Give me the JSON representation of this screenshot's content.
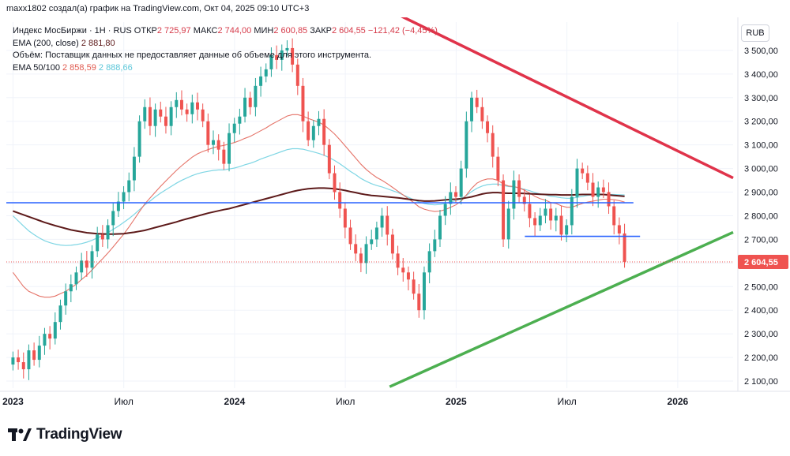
{
  "header": "maxx1802 создал(а) график на TradingView.com, Окт 04, 2025 09:10 UTC+3",
  "legend": {
    "symbol": "Индекс МосБиржи · 1Н · RUS",
    "open_label": "ОТКР",
    "open": "2 725,97",
    "high_label": "МАКС",
    "high": "2 744,00",
    "low_label": "МИН",
    "low": "2 600,85",
    "close_label": "ЗАКР",
    "close": "2 604,55",
    "change": "−121,42 (−4,45%)",
    "ema200_label": "EMA (200, close)",
    "ema200_value": "2 881,80",
    "volume_note": "Объём: Поставщик данных не предоставляет данные об объеме для этого инструмента.",
    "ema_pair_label": "EMA 50/100",
    "ema50_value": "2 858,59",
    "ema100_value": "2 888,66"
  },
  "currency": "RUB",
  "footer": {
    "logo_text": "TradingView"
  },
  "colors": {
    "up": "#26a69a",
    "down": "#ef5350",
    "resistance": "#e0334a",
    "support": "#4caf50",
    "level": "#2962ff",
    "ema200": "#5d1a1a",
    "ema50": "#e57368",
    "ema100": "#7fd6e4"
  },
  "chart_data": {
    "type": "candlestick",
    "title": "Индекс МосБиржи · 1Н · RUS",
    "ylim": [
      2070,
      3620
    ],
    "y_ticks": [
      "3 500,00",
      "3 400,00",
      "3 300,00",
      "3 200,00",
      "3 100,00",
      "3 000,00",
      "2 900,00",
      "2 800,00",
      "2 700,00",
      "2 600,00",
      "2 500,00",
      "2 400,00",
      "2 300,00",
      "2 200,00",
      "2 100,00"
    ],
    "y_tick_values": [
      3500,
      3400,
      3300,
      3200,
      3100,
      3000,
      2900,
      2800,
      2700,
      2600,
      2500,
      2400,
      2300,
      2200,
      2100
    ],
    "x_ticks": [
      "2023",
      "Июл",
      "2024",
      "Июл",
      "2025",
      "Июл",
      "2026"
    ],
    "x_tick_positions": [
      0.0,
      0.5,
      1.0,
      1.5,
      2.0,
      2.5,
      3.0
    ],
    "x_range": [
      -0.03,
      3.25
    ],
    "last_price": "2 604,55",
    "last_price_value": 2604.55,
    "closes": [
      2200,
      2180,
      2150,
      2230,
      2190,
      2250,
      2300,
      2280,
      2350,
      2420,
      2480,
      2510,
      2560,
      2610,
      2580,
      2650,
      2720,
      2700,
      2760,
      2820,
      2860,
      2900,
      2950,
      3050,
      3200,
      3260,
      3180,
      3250,
      3220,
      3180,
      3260,
      3290,
      3250,
      3230,
      3280,
      3250,
      3200,
      3100,
      3120,
      3080,
      3020,
      3150,
      3190,
      3220,
      3300,
      3260,
      3350,
      3390,
      3420,
      3480,
      3460,
      3500,
      3510,
      3440,
      3350,
      3200,
      3120,
      3180,
      3210,
      3100,
      2980,
      2900,
      2830,
      2750,
      2680,
      2640,
      2600,
      2680,
      2700,
      2750,
      2800,
      2720,
      2640,
      2580,
      2560,
      2530,
      2470,
      2400,
      2560,
      2650,
      2700,
      2800,
      2850,
      2900,
      2880,
      3000,
      3200,
      3300,
      3260,
      3200,
      3150,
      3050,
      2950,
      2700,
      2830,
      2950,
      2880,
      2850,
      2790,
      2760,
      2800,
      2830,
      2780,
      2800,
      2720,
      2760,
      2880,
      3000,
      2980,
      2940,
      2880,
      2920,
      2900,
      2840,
      2760,
      2725,
      2605
    ],
    "ema200": [
      2820,
      2812,
      2804,
      2796,
      2788,
      2780,
      2772,
      2765,
      2758,
      2752,
      2746,
      2740,
      2736,
      2732,
      2728,
      2726,
      2724,
      2723,
      2722,
      2722,
      2723,
      2724,
      2727,
      2730,
      2734,
      2738,
      2744,
      2750,
      2756,
      2762,
      2768,
      2774,
      2781,
      2787,
      2793,
      2799,
      2805,
      2811,
      2816,
      2821,
      2826,
      2830,
      2836,
      2842,
      2848,
      2854,
      2860,
      2866,
      2872,
      2878,
      2884,
      2890,
      2896,
      2902,
      2907,
      2911,
      2914,
      2916,
      2917,
      2917,
      2916,
      2914,
      2911,
      2907,
      2902,
      2898,
      2893,
      2889,
      2886,
      2884,
      2882,
      2880,
      2878,
      2876,
      2873,
      2870,
      2867,
      2864,
      2862,
      2862,
      2863,
      2865,
      2867,
      2869,
      2870,
      2872,
      2876,
      2880,
      2886,
      2892,
      2896,
      2898,
      2898,
      2896,
      2895,
      2895,
      2895,
      2894,
      2893,
      2892,
      2891,
      2890,
      2889,
      2889,
      2888,
      2888,
      2888,
      2889,
      2890,
      2890,
      2890,
      2890,
      2890,
      2888,
      2886,
      2884,
      2882
    ],
    "ema50": [
      2560,
      2530,
      2500,
      2480,
      2470,
      2460,
      2455,
      2455,
      2460,
      2470,
      2480,
      2495,
      2510,
      2530,
      2548,
      2570,
      2595,
      2618,
      2642,
      2668,
      2695,
      2722,
      2752,
      2785,
      2818,
      2850,
      2875,
      2900,
      2925,
      2948,
      2970,
      2992,
      3012,
      3030,
      3048,
      3062,
      3072,
      3080,
      3088,
      3094,
      3098,
      3104,
      3110,
      3118,
      3128,
      3136,
      3148,
      3160,
      3172,
      3186,
      3198,
      3210,
      3222,
      3228,
      3228,
      3222,
      3212,
      3204,
      3196,
      3184,
      3166,
      3146,
      3122,
      3096,
      3070,
      3044,
      3018,
      2996,
      2978,
      2962,
      2950,
      2936,
      2920,
      2904,
      2888,
      2872,
      2856,
      2838,
      2828,
      2822,
      2818,
      2820,
      2826,
      2836,
      2846,
      2862,
      2888,
      2916,
      2938,
      2950,
      2956,
      2956,
      2950,
      2934,
      2926,
      2924,
      2918,
      2908,
      2896,
      2882,
      2872,
      2866,
      2856,
      2852,
      2842,
      2836,
      2836,
      2844,
      2852,
      2858,
      2862,
      2866,
      2870,
      2870,
      2868,
      2864,
      2858
    ],
    "ema100": [
      2800,
      2778,
      2756,
      2736,
      2720,
      2706,
      2694,
      2686,
      2680,
      2676,
      2674,
      2675,
      2678,
      2682,
      2688,
      2696,
      2706,
      2716,
      2728,
      2742,
      2756,
      2772,
      2788,
      2806,
      2826,
      2846,
      2862,
      2880,
      2896,
      2910,
      2924,
      2938,
      2950,
      2960,
      2970,
      2978,
      2984,
      2988,
      2992,
      2994,
      2994,
      2998,
      3002,
      3008,
      3016,
      3022,
      3030,
      3040,
      3048,
      3056,
      3064,
      3072,
      3080,
      3084,
      3084,
      3082,
      3076,
      3070,
      3064,
      3056,
      3046,
      3034,
      3020,
      3004,
      2988,
      2974,
      2958,
      2946,
      2936,
      2928,
      2922,
      2914,
      2906,
      2898,
      2888,
      2878,
      2868,
      2858,
      2852,
      2848,
      2846,
      2848,
      2852,
      2858,
      2864,
      2872,
      2886,
      2902,
      2916,
      2926,
      2932,
      2934,
      2934,
      2928,
      2924,
      2922,
      2918,
      2912,
      2906,
      2898,
      2892,
      2888,
      2882,
      2880,
      2876,
      2874,
      2874,
      2878,
      2882,
      2886,
      2888,
      2890,
      2890,
      2890,
      2890,
      2889,
      2888
    ],
    "ema_alignment_note": "",
    "x_start": 0.0,
    "x_end": 2.76,
    "resistance_line": {
      "x": [
        1.72,
        3.25
      ],
      "y": [
        3660,
        2960
      ]
    },
    "support_line": {
      "x": [
        1.7,
        3.25
      ],
      "y": [
        2076,
        2730
      ]
    },
    "levels": [
      {
        "y": 2855,
        "x": [
          -0.03,
          2.8
        ]
      },
      {
        "y": 2713,
        "x": [
          2.31,
          2.83
        ]
      }
    ]
  }
}
